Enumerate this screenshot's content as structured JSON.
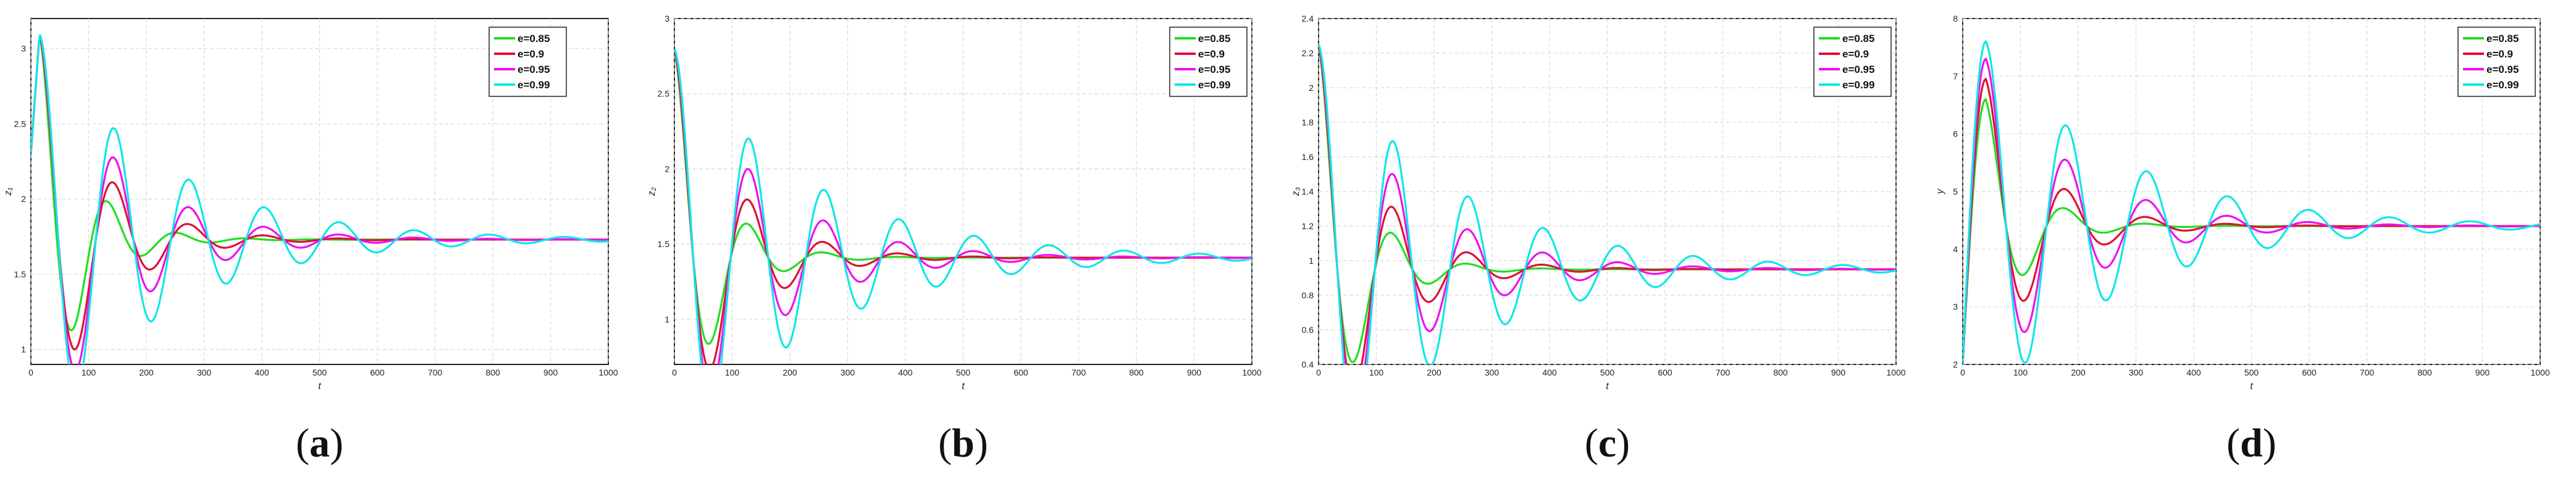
{
  "colors": {
    "e085": "#22dd22",
    "e09": "#dd1133",
    "e095": "#ee11ee",
    "e099": "#11e6e6"
  },
  "chart_data": [
    {
      "type": "line",
      "caption_letter": "a",
      "xlabel": "t",
      "ylabel": "z₁",
      "xlim": [
        0,
        1000
      ],
      "ylim": [
        0.9,
        3.2
      ],
      "xticks": [
        "0",
        "100",
        "200",
        "300",
        "400",
        "500",
        "600",
        "700",
        "800",
        "900",
        "1000"
      ],
      "yticks": [
        {
          "v": 1,
          "label": "1"
        },
        {
          "v": 1.5,
          "label": "1.5"
        },
        {
          "v": 2,
          "label": "2"
        },
        {
          "v": 2.5,
          "label": "2.5"
        },
        {
          "v": 3,
          "label": "3"
        }
      ],
      "grid": true,
      "legend_position": "top-right",
      "params": {
        "y0": 2.3,
        "peak_t": 15,
        "peak_y": 3.1,
        "ss": 1.73,
        "decay_start": 25
      },
      "series": [
        {
          "name": "e=0.85",
          "color_key": "e085",
          "A": -0.35,
          "tau": 70,
          "period": 120
        },
        {
          "name": "e=0.9",
          "color_key": "e09",
          "A": -0.47,
          "tau": 100,
          "period": 130
        },
        {
          "name": "e=0.95",
          "color_key": "e095",
          "A": -0.62,
          "tau": 140,
          "period": 130
        },
        {
          "name": "e=0.99",
          "color_key": "e099",
          "A": -0.8,
          "tau": 210,
          "period": 130
        }
      ]
    },
    {
      "type": "line",
      "caption_letter": "b",
      "xlabel": "t",
      "ylabel": "z₂",
      "xlim": [
        0,
        1000
      ],
      "ylim": [
        0.7,
        3.0
      ],
      "xticks": [
        "0",
        "100",
        "200",
        "300",
        "400",
        "500",
        "600",
        "700",
        "800",
        "900",
        "1000"
      ],
      "yticks": [
        {
          "v": 1,
          "label": "1"
        },
        {
          "v": 1.5,
          "label": "1.5"
        },
        {
          "v": 2,
          "label": "2"
        },
        {
          "v": 2.5,
          "label": "2.5"
        },
        {
          "v": 3,
          "label": "3"
        }
      ],
      "grid": true,
      "legend_position": "top-right",
      "params": {
        "y0": 2.8,
        "peak_t": 0,
        "peak_y": 2.8,
        "ss": 1.41,
        "decay_start": 5
      },
      "series": [
        {
          "name": "e=0.85",
          "color_key": "e085",
          "A": -0.27,
          "tau": 70,
          "period": 130
        },
        {
          "name": "e=0.9",
          "color_key": "e09",
          "A": -0.4,
          "tau": 100,
          "period": 130
        },
        {
          "name": "e=0.95",
          "color_key": "e095",
          "A": -0.55,
          "tau": 150,
          "period": 130
        },
        {
          "name": "e=0.99",
          "color_key": "e099",
          "A": -0.68,
          "tau": 230,
          "period": 130
        }
      ]
    },
    {
      "type": "line",
      "caption_letter": "c",
      "xlabel": "t",
      "ylabel": "z₃",
      "xlim": [
        0,
        1000
      ],
      "ylim": [
        0.4,
        2.4
      ],
      "xticks": [
        "0",
        "100",
        "200",
        "300",
        "400",
        "500",
        "600",
        "700",
        "800",
        "900",
        "1000"
      ],
      "yticks": [
        {
          "v": 0.4,
          "label": "0.4"
        },
        {
          "v": 0.6,
          "label": "0.6"
        },
        {
          "v": 0.8,
          "label": "0.8"
        },
        {
          "v": 1,
          "label": "1"
        },
        {
          "v": 1.2,
          "label": "1.2"
        },
        {
          "v": 1.4,
          "label": "1.4"
        },
        {
          "v": 1.6,
          "label": "1.6"
        },
        {
          "v": 1.8,
          "label": "1.8"
        },
        {
          "v": 2,
          "label": "2"
        },
        {
          "v": 2.2,
          "label": "2.2"
        },
        {
          "v": 2.4,
          "label": "2.4"
        }
      ],
      "grid": true,
      "legend_position": "top-right",
      "params": {
        "y0": 2.25,
        "peak_t": 0,
        "peak_y": 2.25,
        "ss": 0.95,
        "decay_start": 5
      },
      "series": [
        {
          "name": "e=0.85",
          "color_key": "e085",
          "A": -0.24,
          "tau": 70,
          "period": 130
        },
        {
          "name": "e=0.9",
          "color_key": "e09",
          "A": -0.33,
          "tau": 100,
          "period": 130
        },
        {
          "name": "e=0.95",
          "color_key": "e095",
          "A": -0.43,
          "tau": 150,
          "period": 130
        },
        {
          "name": "e=0.99",
          "color_key": "e099",
          "A": -0.53,
          "tau": 230,
          "period": 130
        }
      ]
    },
    {
      "type": "line",
      "caption_letter": "d",
      "xlabel": "t",
      "ylabel": "y",
      "xlim": [
        0,
        1000
      ],
      "ylim": [
        2,
        8
      ],
      "xticks": [
        "0",
        "100",
        "200",
        "300",
        "400",
        "500",
        "600",
        "700",
        "800",
        "900",
        "1000"
      ],
      "yticks": [
        {
          "v": 2,
          "label": "2"
        },
        {
          "v": 3,
          "label": "3"
        },
        {
          "v": 4,
          "label": "4"
        },
        {
          "v": 5,
          "label": "5"
        },
        {
          "v": 6,
          "label": "6"
        },
        {
          "v": 7,
          "label": "7"
        },
        {
          "v": 8,
          "label": "8"
        }
      ],
      "grid": true,
      "legend_position": "top-right",
      "params": {
        "y0": 2.0,
        "rise_t": 40,
        "ss": 4.4
      },
      "series": [
        {
          "name": "e=0.85",
          "color_key": "e085",
          "peak": 6.6,
          "A": -0.28,
          "tau": 70,
          "period": 140
        },
        {
          "name": "e=0.9",
          "color_key": "e09",
          "peak": 6.95,
          "A": -0.32,
          "tau": 100,
          "period": 140
        },
        {
          "name": "e=0.95",
          "color_key": "e095",
          "peak": 7.3,
          "A": -0.36,
          "tau": 150,
          "period": 140
        },
        {
          "name": "e=0.99",
          "color_key": "e099",
          "peak": 7.6,
          "A": -0.4,
          "tau": 230,
          "period": 140
        }
      ]
    }
  ]
}
